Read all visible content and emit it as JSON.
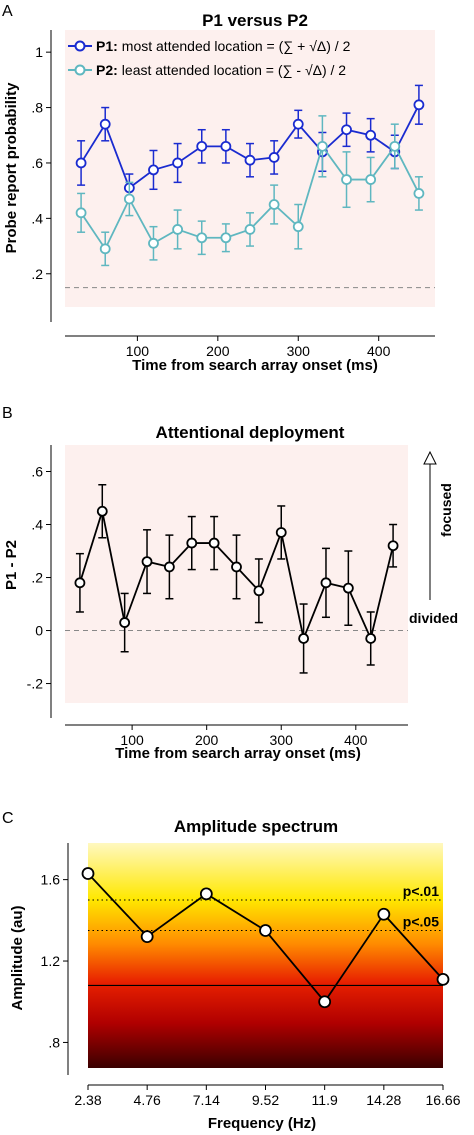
{
  "chart_data": [
    {
      "panel_label": "A",
      "type": "line",
      "title": "P1 versus P2",
      "xlabel": "Time from search array onset (ms)",
      "ylabel": "Probe report probability",
      "xlim": [
        10,
        470
      ],
      "ylim": [
        0.08,
        1.08
      ],
      "xticks": [
        100,
        200,
        300,
        400
      ],
      "xtick_labels": [
        "100",
        "200",
        "300",
        "400"
      ],
      "yticks": [
        0.2,
        0.4,
        0.6,
        0.8,
        1.0
      ],
      "ytick_labels": [
        ".2",
        ".4",
        ".6",
        ".8",
        "1"
      ],
      "background": "#fdf0ee",
      "reference_line": 0.15,
      "legend_position": "top-left",
      "legend": [
        {
          "key": "P1:",
          "text": "most attended location = (∑ + √Δ) / 2"
        },
        {
          "key": "P2:",
          "text": "least attended location = (∑ - √Δ) / 2"
        }
      ],
      "series": [
        {
          "color": "#1a2bd0",
          "x": [
            30,
            60,
            90,
            120,
            150,
            180,
            210,
            240,
            270,
            300,
            330,
            360,
            390,
            420,
            450
          ],
          "y": [
            0.6,
            0.74,
            0.51,
            0.575,
            0.6,
            0.66,
            0.66,
            0.61,
            0.62,
            0.74,
            0.64,
            0.72,
            0.7,
            0.64,
            0.81
          ],
          "err": [
            0.08,
            0.06,
            0.05,
            0.07,
            0.07,
            0.06,
            0.06,
            0.06,
            0.06,
            0.05,
            0.07,
            0.06,
            0.06,
            0.06,
            0.07
          ]
        },
        {
          "color": "#5fb7c0",
          "x": [
            30,
            60,
            90,
            120,
            150,
            180,
            210,
            240,
            270,
            300,
            330,
            360,
            390,
            420,
            450
          ],
          "y": [
            0.42,
            0.29,
            0.47,
            0.31,
            0.36,
            0.33,
            0.33,
            0.36,
            0.45,
            0.37,
            0.66,
            0.54,
            0.54,
            0.66,
            0.49
          ],
          "err": [
            0.07,
            0.06,
            0.06,
            0.06,
            0.07,
            0.06,
            0.05,
            0.06,
            0.07,
            0.08,
            0.11,
            0.1,
            0.08,
            0.08,
            0.06
          ]
        }
      ]
    },
    {
      "panel_label": "B",
      "type": "line",
      "title": "Attentional deployment",
      "xlabel": "Time from search array onset (ms)",
      "ylabel": "P1 - P2",
      "xlim": [
        10,
        470
      ],
      "ylim": [
        -0.33,
        0.7
      ],
      "xticks": [
        100,
        200,
        300,
        400
      ],
      "xtick_labels": [
        "100",
        "200",
        "300",
        "400"
      ],
      "yticks": [
        -0.2,
        0,
        0.2,
        0.4,
        0.6
      ],
      "ytick_labels": [
        "-.2",
        "0",
        ".2",
        ".4",
        ".6"
      ],
      "background": "#fdf0ee",
      "reference_line": 0,
      "annotations": [
        "focused",
        "divided"
      ],
      "series": [
        {
          "color": "#000000",
          "x": [
            30,
            60,
            90,
            120,
            150,
            180,
            210,
            240,
            270,
            300,
            330,
            360,
            390,
            420,
            450
          ],
          "y": [
            0.18,
            0.45,
            0.03,
            0.26,
            0.24,
            0.33,
            0.33,
            0.24,
            0.15,
            0.37,
            -0.03,
            0.18,
            0.16,
            -0.03,
            0.32
          ],
          "err": [
            0.11,
            0.1,
            0.11,
            0.12,
            0.12,
            0.1,
            0.1,
            0.12,
            0.12,
            0.1,
            0.13,
            0.13,
            0.14,
            0.1,
            0.08
          ]
        }
      ]
    },
    {
      "panel_label": "C",
      "type": "line",
      "title": "Amplitude spectrum",
      "xlabel": "Frequency (Hz)",
      "ylabel": "Amplitude (au)",
      "xlim": [
        2.38,
        16.66
      ],
      "ylim": [
        0.64,
        1.78
      ],
      "xticks": [
        2.38,
        4.76,
        7.14,
        9.52,
        11.9,
        14.28,
        16.66
      ],
      "xtick_labels": [
        "2.38",
        "4.76",
        "7.14",
        "9.52",
        "11.9",
        "14.28",
        "16.66"
      ],
      "yticks": [
        0.8,
        1.2,
        1.6
      ],
      "ytick_labels": [
        ".8",
        "1.2",
        "1.6"
      ],
      "thresholds": [
        {
          "label": "p<.01",
          "value": 1.5,
          "style": "dotted"
        },
        {
          "label": "p<.05",
          "value": 1.35,
          "style": "dotted"
        },
        {
          "value": 1.08,
          "style": "solid"
        }
      ],
      "background_gradient": [
        "#fff8c0",
        "#ffe800",
        "#ff8a00",
        "#e82000",
        "#b00000",
        "#3a0000"
      ],
      "series": [
        {
          "color": "#000000",
          "x": [
            2.38,
            4.76,
            7.14,
            9.52,
            11.9,
            14.28,
            16.66
          ],
          "y": [
            1.63,
            1.32,
            1.53,
            1.35,
            1.0,
            1.43,
            1.11
          ]
        }
      ]
    }
  ]
}
